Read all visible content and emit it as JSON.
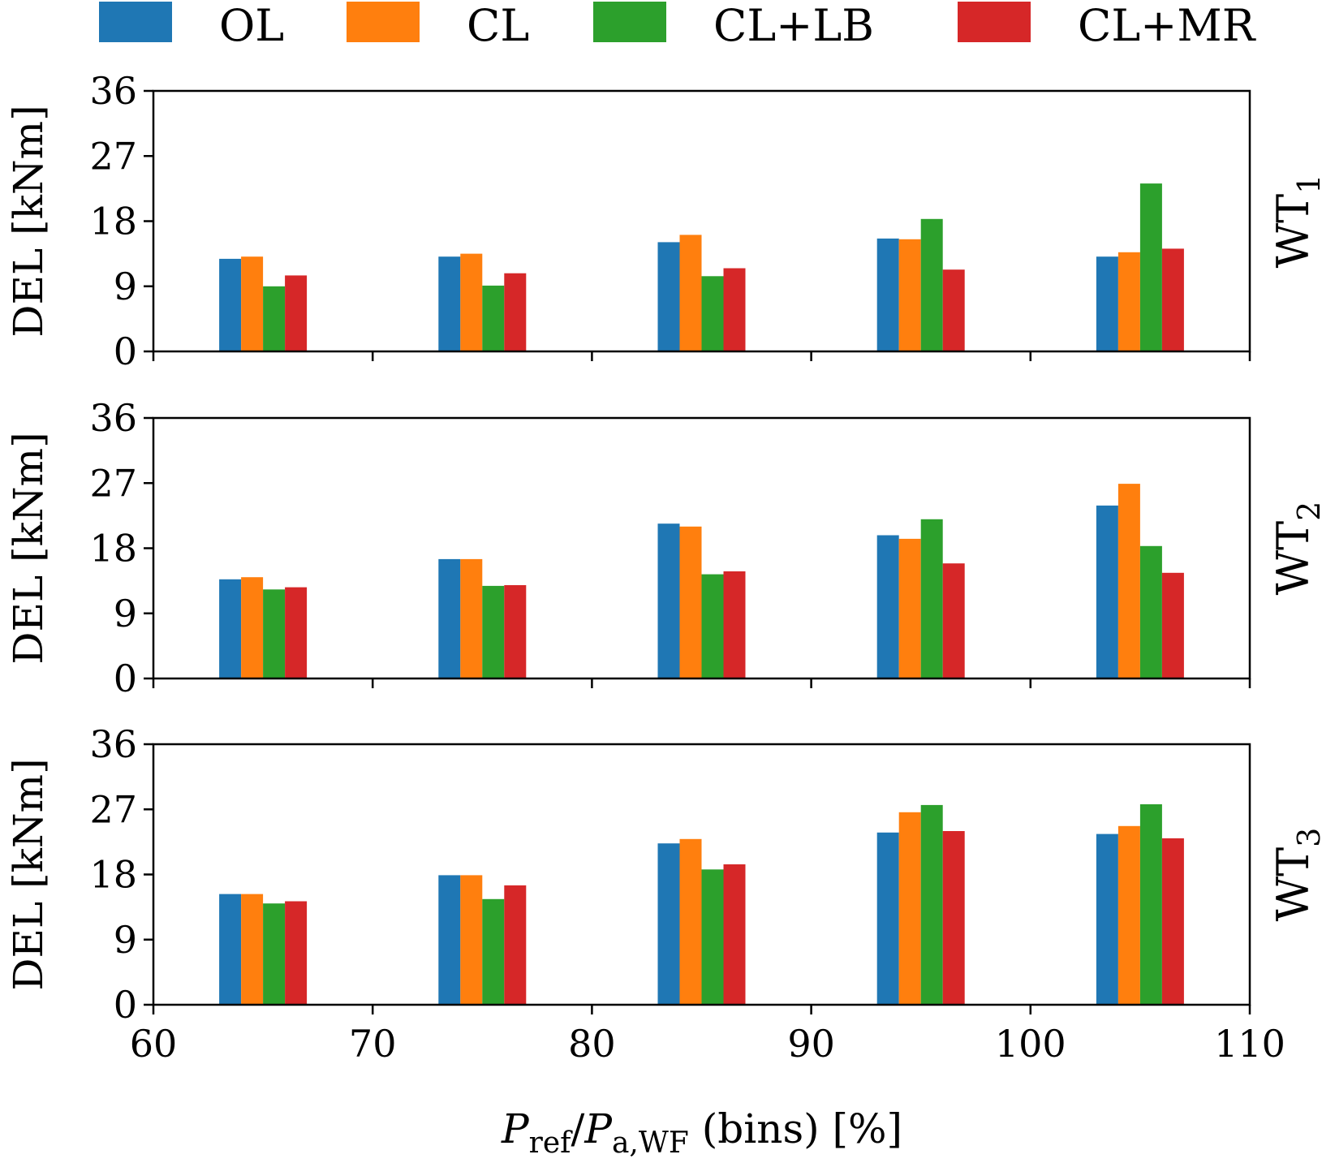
{
  "chart_data": {
    "type": "bar",
    "legend": {
      "position": "top",
      "entries": [
        {
          "name": "OL",
          "color": "#1f77b4"
        },
        {
          "name": "CL",
          "color": "#ff7f0e"
        },
        {
          "name": "CL+LB",
          "color": "#2ca02c"
        },
        {
          "name": "CL+MR",
          "color": "#d62728"
        }
      ]
    },
    "x_categories": [
      65,
      75,
      85,
      95,
      105
    ],
    "xlim": [
      60,
      110
    ],
    "xticks": [
      60,
      70,
      80,
      90,
      100,
      110
    ],
    "xticks_text": [
      "60",
      "70",
      "80",
      "90",
      "100",
      "110"
    ],
    "xlabel": "P_ref / P_a,WF (bins) [%]",
    "xlabel_parts": {
      "P1": "P",
      "sub1": "ref",
      "slash": "/",
      "P2": "P",
      "sub2": "a,WF",
      "rest": " (bins) [%]"
    },
    "ylim": [
      0,
      36
    ],
    "yticks": [
      0,
      9,
      18,
      27,
      36
    ],
    "yticks_text": [
      "0",
      "9",
      "18",
      "27",
      "36"
    ],
    "ylabel": "DEL [kNm]",
    "grid": false,
    "panels": [
      {
        "label": "WT",
        "label_sub": "1",
        "series": [
          {
            "name": "OL",
            "values": [
              12.8,
              13.1,
              15.1,
              15.6,
              13.1
            ]
          },
          {
            "name": "CL",
            "values": [
              13.1,
              13.5,
              16.1,
              15.5,
              13.7
            ]
          },
          {
            "name": "CL+LB",
            "values": [
              9.0,
              9.1,
              10.4,
              18.3,
              23.2
            ]
          },
          {
            "name": "CL+MR",
            "values": [
              10.5,
              10.8,
              11.5,
              11.3,
              14.2
            ]
          }
        ]
      },
      {
        "label": "WT",
        "label_sub": "2",
        "series": [
          {
            "name": "OL",
            "values": [
              13.7,
              16.5,
              21.4,
              19.8,
              23.9
            ]
          },
          {
            "name": "CL",
            "values": [
              14.0,
              16.5,
              21.0,
              19.3,
              26.9
            ]
          },
          {
            "name": "CL+LB",
            "values": [
              12.3,
              12.8,
              14.4,
              22.0,
              18.3
            ]
          },
          {
            "name": "CL+MR",
            "values": [
              12.6,
              12.9,
              14.8,
              15.9,
              14.6
            ]
          }
        ]
      },
      {
        "label": "WT",
        "label_sub": "3",
        "series": [
          {
            "name": "OL",
            "values": [
              15.3,
              17.9,
              22.3,
              23.8,
              23.6
            ]
          },
          {
            "name": "CL",
            "values": [
              15.3,
              17.9,
              22.9,
              26.6,
              24.7
            ]
          },
          {
            "name": "CL+LB",
            "values": [
              14.0,
              14.6,
              18.7,
              27.6,
              27.7
            ]
          },
          {
            "name": "CL+MR",
            "values": [
              14.3,
              16.5,
              19.4,
              24.0,
              23.0
            ]
          }
        ]
      }
    ]
  }
}
